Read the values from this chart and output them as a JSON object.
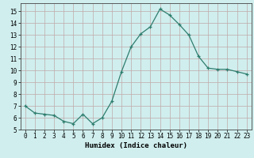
{
  "x": [
    0,
    1,
    2,
    3,
    4,
    5,
    6,
    7,
    8,
    9,
    10,
    11,
    12,
    13,
    14,
    15,
    16,
    17,
    18,
    19,
    20,
    21,
    22,
    23
  ],
  "y": [
    7.0,
    6.4,
    6.3,
    6.2,
    5.7,
    5.5,
    6.3,
    5.5,
    6.0,
    7.4,
    9.9,
    12.0,
    13.1,
    13.7,
    15.2,
    14.7,
    13.9,
    13.0,
    11.2,
    10.2,
    10.1,
    10.1,
    9.9,
    9.7
  ],
  "line_color": "#2e7d6e",
  "marker": "+",
  "marker_size": 3,
  "bg_color": "#d0eeee",
  "grid_color": "#c0a8a8",
  "xlabel": "Humidex (Indice chaleur)",
  "xlim": [
    -0.5,
    23.5
  ],
  "ylim": [
    5,
    15.7
  ],
  "yticks": [
    5,
    6,
    7,
    8,
    9,
    10,
    11,
    12,
    13,
    14,
    15
  ],
  "xticks": [
    0,
    1,
    2,
    3,
    4,
    5,
    6,
    7,
    8,
    9,
    10,
    11,
    12,
    13,
    14,
    15,
    16,
    17,
    18,
    19,
    20,
    21,
    22,
    23
  ],
  "tick_fontsize": 5.5,
  "xlabel_fontsize": 6.5
}
